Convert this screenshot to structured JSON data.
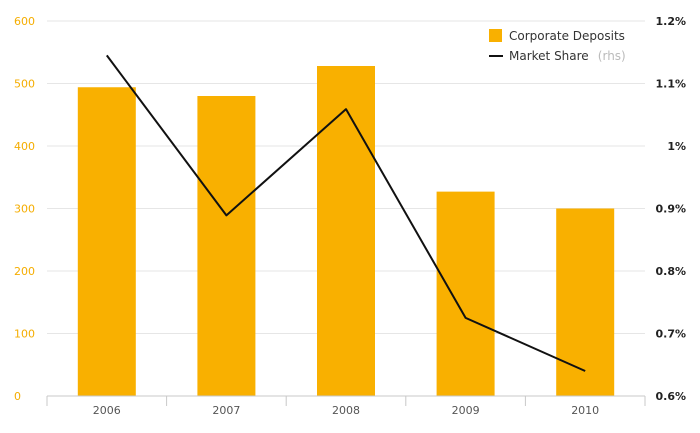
{
  "chart_data": {
    "type": "bar",
    "categories": [
      "2006",
      "2007",
      "2008",
      "2009",
      "2010"
    ],
    "series": [
      {
        "name": "Corporate Deposits",
        "type": "bar",
        "axis": "left",
        "values": [
          494,
          480,
          528,
          327,
          300
        ],
        "color": "#f9b000"
      },
      {
        "name": "Market Share",
        "name_note": "(rhs)",
        "type": "line",
        "axis": "right",
        "values": [
          1.145,
          0.889,
          1.059,
          0.725,
          0.64
        ],
        "color": "#111111"
      }
    ],
    "y_left": {
      "ylim": [
        0,
        600
      ],
      "ticks": [
        0,
        100,
        200,
        300,
        400,
        500,
        600
      ],
      "tick_labels": [
        "0",
        "100",
        "200",
        "300",
        "400",
        "500",
        "600"
      ],
      "label_color": "#f5ad00"
    },
    "y_right": {
      "ylim": [
        0.6,
        1.2
      ],
      "ticks": [
        0.6,
        0.7,
        0.8,
        0.9,
        1.0,
        1.1,
        1.2
      ],
      "tick_labels": [
        "0.6%",
        "0.7%",
        "0.8%",
        "0.9%",
        "1%",
        "1.1%",
        "1.2%"
      ]
    },
    "grid": true,
    "legend_position": "top-right",
    "title": "",
    "xlabel": "",
    "ylabel": ""
  }
}
